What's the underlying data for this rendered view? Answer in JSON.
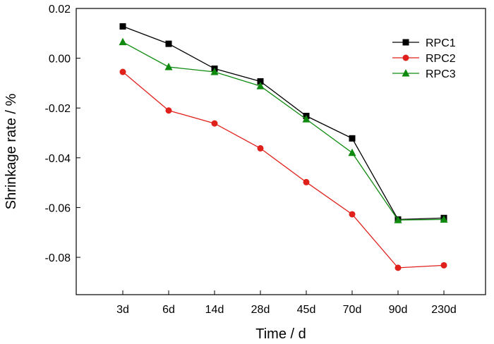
{
  "chart_data": {
    "type": "line",
    "title": "",
    "xlabel": "Time / d",
    "ylabel": "Shrinkage rate / %",
    "categories": [
      "3d",
      "6d",
      "14d",
      "28d",
      "45d",
      "70d",
      "90d",
      "230d"
    ],
    "ylim": [
      -0.095,
      0.02
    ],
    "yticks": [
      0.02,
      0.0,
      -0.02,
      -0.04,
      -0.06,
      -0.08
    ],
    "ytick_labels": [
      "0.02",
      "0.00",
      "-0.02",
      "-0.04",
      "-0.06",
      "-0.08"
    ],
    "grid": false,
    "legend_position": "top-right",
    "series": [
      {
        "name": "RPC1",
        "color": "#000000",
        "marker": "square",
        "values": [
          0.0128,
          0.0058,
          -0.0042,
          -0.0093,
          -0.0232,
          -0.0322,
          -0.0648,
          -0.0642
        ]
      },
      {
        "name": "RPC2",
        "color": "#e0201b",
        "marker": "circle",
        "values": [
          -0.0055,
          -0.021,
          -0.0262,
          -0.0362,
          -0.0498,
          -0.0627,
          -0.0842,
          -0.0832
        ]
      },
      {
        "name": "RPC3",
        "color": "#0e8a0e",
        "marker": "triangle",
        "values": [
          0.0065,
          -0.0035,
          -0.0055,
          -0.0112,
          -0.0245,
          -0.038,
          -0.065,
          -0.0648
        ]
      }
    ]
  }
}
